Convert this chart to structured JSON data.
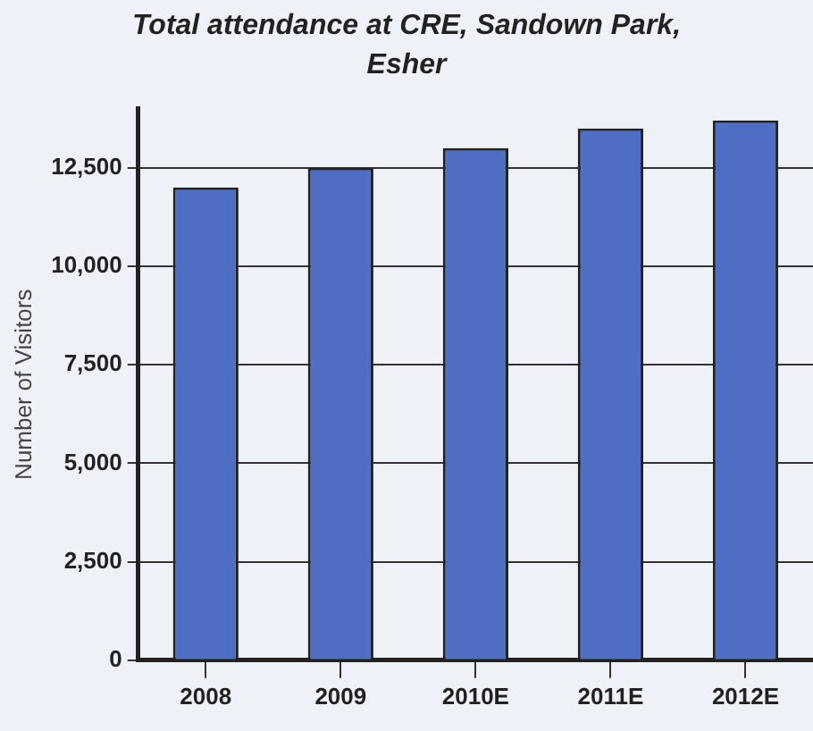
{
  "chart_data": {
    "type": "bar",
    "title": "Total attendance at CRE, Sandown Park, Esher",
    "ylabel": "Number of Visitors",
    "categories": [
      "2008",
      "2009",
      "2010E",
      "2011E",
      "2012E"
    ],
    "values": [
      12000,
      12500,
      13000,
      13500,
      13700
    ],
    "color": "#4f6fc4",
    "ylim": [
      0,
      14000
    ],
    "yticks": [
      {
        "value": 0,
        "label": "0"
      },
      {
        "value": 2500,
        "label": "2,500"
      },
      {
        "value": 5000,
        "label": "5,000"
      },
      {
        "value": 7500,
        "label": "7,500"
      },
      {
        "value": 10000,
        "label": "10,000"
      },
      {
        "value": 12500,
        "label": "12,500"
      }
    ],
    "grid": "y"
  }
}
